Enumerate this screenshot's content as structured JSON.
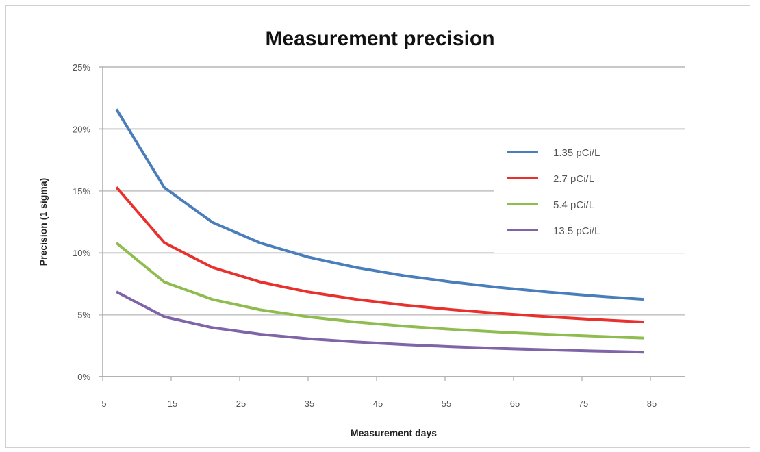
{
  "chart_data": {
    "type": "line",
    "title": "Measurement precision",
    "xlabel": "Measurement days",
    "ylabel": "Precision (1 sigma)",
    "xlim": [
      5,
      90
    ],
    "ylim": [
      0,
      25
    ],
    "x_ticks": [
      "5",
      "15",
      "25",
      "35",
      "45",
      "55",
      "65",
      "75",
      "85"
    ],
    "y_ticks": [
      "0%",
      "5%",
      "10%",
      "15%",
      "20%",
      "25%"
    ],
    "grid": "horizontal",
    "legend_position": "right",
    "x": [
      7,
      14,
      21,
      28,
      35,
      42,
      49,
      56,
      63,
      70,
      77,
      84
    ],
    "series": [
      {
        "name": "1.35 pCi/L",
        "color": "#4a7ebb",
        "values": [
          21.6,
          15.27,
          12.47,
          10.8,
          9.66,
          8.82,
          8.16,
          7.64,
          7.2,
          6.83,
          6.51,
          6.24
        ]
      },
      {
        "name": "2.7 pCi/L",
        "color": "#e8302c",
        "values": [
          15.3,
          10.82,
          8.83,
          7.65,
          6.84,
          6.25,
          5.78,
          5.41,
          5.1,
          4.84,
          4.61,
          4.42
        ]
      },
      {
        "name": "5.4 pCi/L",
        "color": "#8fbc4f",
        "values": [
          10.8,
          7.64,
          6.24,
          5.4,
          4.83,
          4.41,
          4.08,
          3.82,
          3.6,
          3.42,
          3.26,
          3.12
        ]
      },
      {
        "name": "13.5 pCi/L",
        "color": "#7f64a8",
        "values": [
          6.85,
          4.84,
          3.96,
          3.43,
          3.06,
          2.8,
          2.59,
          2.42,
          2.28,
          2.17,
          2.07,
          1.98
        ]
      }
    ]
  }
}
